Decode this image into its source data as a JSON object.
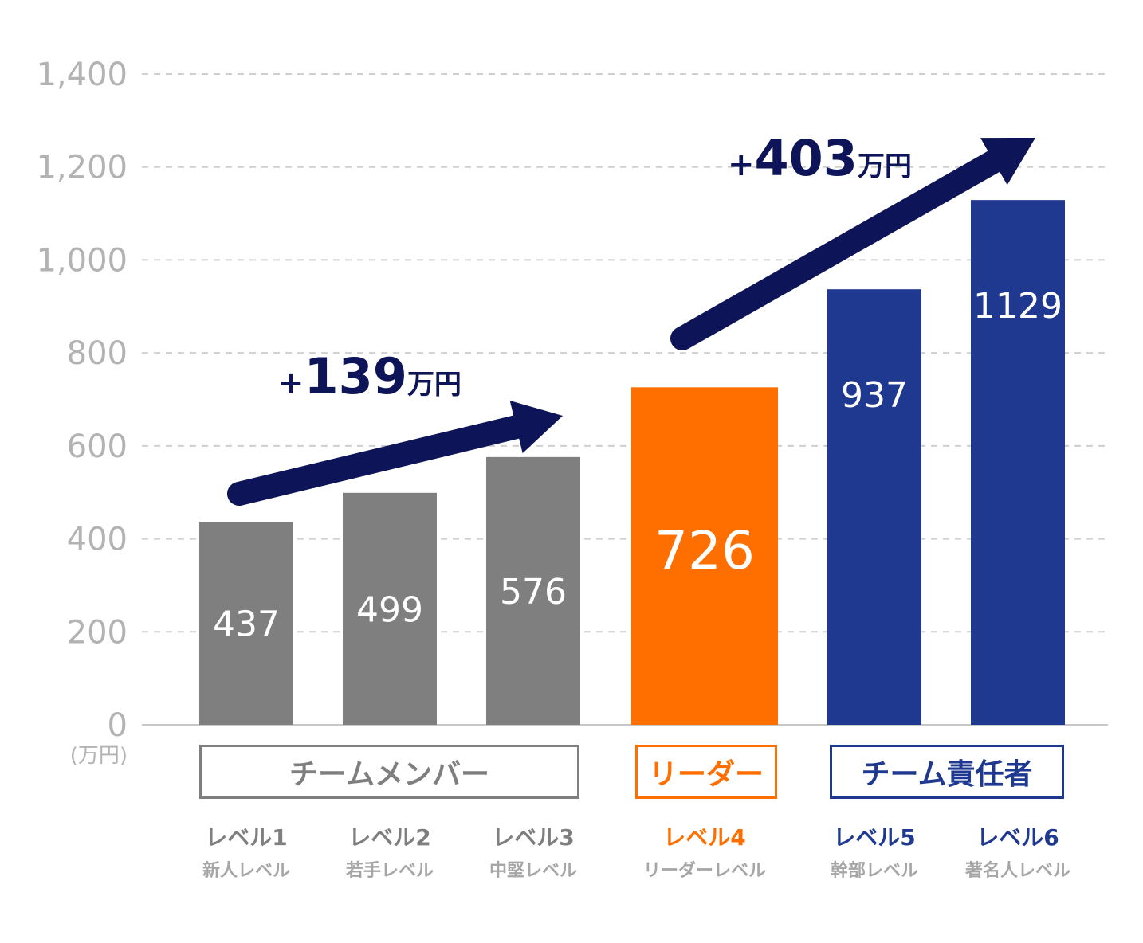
{
  "chart_data": {
    "type": "bar",
    "unit_label": "(万円)",
    "ylim": [
      0,
      1400
    ],
    "yticks": [
      "0",
      "200",
      "400",
      "600",
      "800",
      "1,000",
      "1,200",
      "1,400"
    ],
    "grid": true,
    "categories": [
      "レベル1",
      "レベル2",
      "レベル3",
      "レベル4",
      "レベル5",
      "レベル6"
    ],
    "subcategories": [
      "新人レベル",
      "若手レベル",
      "中堅レベル",
      "リーダーレベル",
      "幹部レベル",
      "著名人レベル"
    ],
    "values": [
      437,
      499,
      576,
      726,
      937,
      1129
    ],
    "groups": [
      {
        "label": "チームメンバー",
        "color": "#7f7f7f",
        "members": [
          0,
          1,
          2
        ]
      },
      {
        "label": "リーダー",
        "color": "#ff6f00",
        "members": [
          3
        ]
      },
      {
        "label": "チーム責任者",
        "color": "#1f3990",
        "members": [
          4,
          5
        ]
      }
    ],
    "annotations": [
      {
        "plus": "+",
        "value": "139",
        "unit": "万円",
        "color": "#0d1457"
      },
      {
        "plus": "+",
        "value": "403",
        "unit": "万円",
        "color": "#0d1457"
      }
    ]
  }
}
